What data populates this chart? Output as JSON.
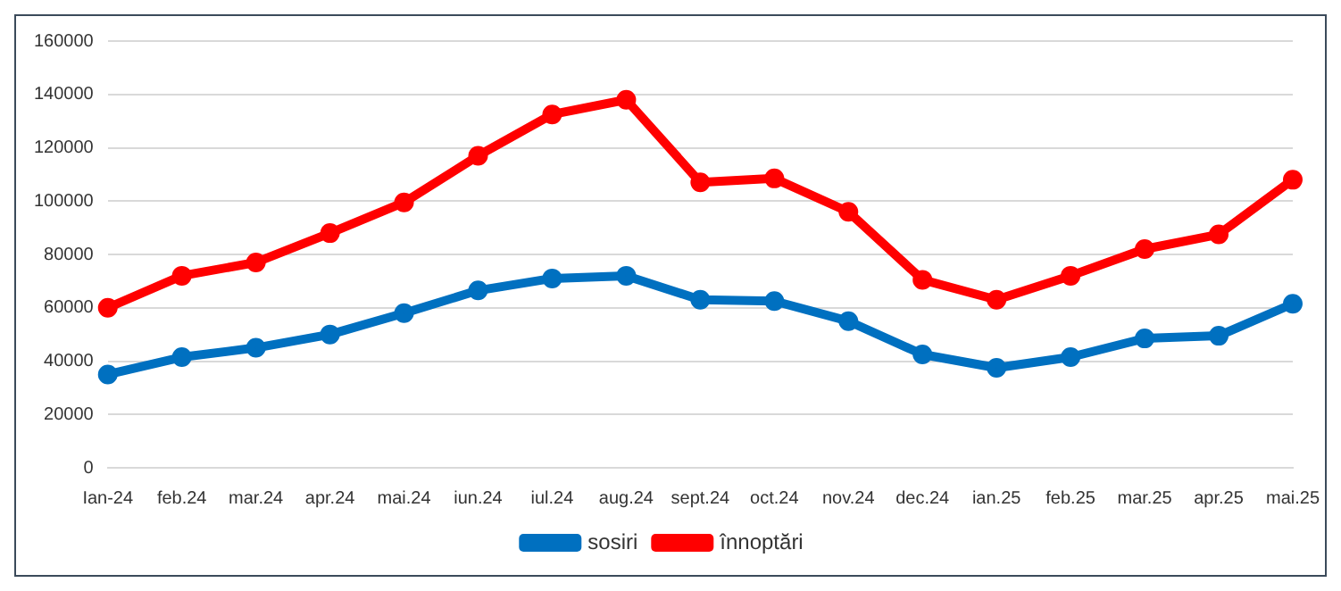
{
  "chart_data": {
    "type": "line",
    "categories": [
      "Ian-24",
      "feb.24",
      "mar.24",
      "apr.24",
      "mai.24",
      "iun.24",
      "iul.24",
      "aug.24",
      "sept.24",
      "oct.24",
      "nov.24",
      "dec.24",
      "ian.25",
      "feb.25",
      "mar.25",
      "apr.25",
      "mai.25"
    ],
    "series": [
      {
        "name": "sosiri",
        "color": "#0070c0",
        "values": [
          35000,
          41500,
          45000,
          50000,
          58000,
          66500,
          71000,
          72000,
          63000,
          62500,
          55000,
          42500,
          37500,
          41500,
          48500,
          49500,
          61500
        ]
      },
      {
        "name": "înnoptări",
        "color": "#ff0000",
        "values": [
          60000,
          72000,
          77000,
          88000,
          99500,
          117000,
          132500,
          138000,
          107000,
          108500,
          96000,
          70500,
          63000,
          72000,
          82000,
          87500,
          108000
        ]
      }
    ],
    "ylim": [
      0,
      160000
    ],
    "yticks": [
      0,
      20000,
      40000,
      60000,
      80000,
      100000,
      120000,
      140000,
      160000
    ],
    "grid": "y",
    "legend": "bottom",
    "marker": "circle",
    "line_style": "solid"
  }
}
